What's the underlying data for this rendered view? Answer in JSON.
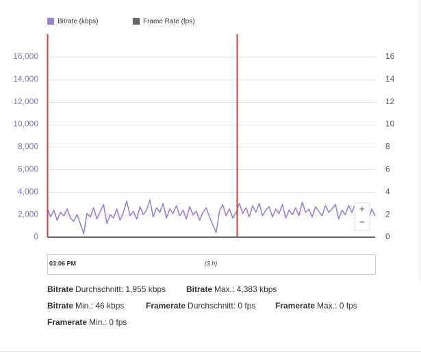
{
  "chart_data": {
    "type": "line",
    "legend_position": "top-left",
    "grid": true,
    "ylim": [
      0,
      18000
    ],
    "yticks": [
      0,
      {
        "value": 2000,
        "label": "2,000"
      },
      {
        "value": 4000,
        "label": "4,000"
      },
      {
        "value": 6000,
        "label": "6,000"
      },
      {
        "value": 8000,
        "label": "8,000"
      },
      {
        "value": 10000,
        "label": "10,000"
      },
      {
        "value": 12000,
        "label": "12,000"
      },
      {
        "value": 14000,
        "label": "14,000"
      },
      {
        "value": 16000,
        "label": "16,000"
      }
    ],
    "y2lim": [
      0,
      18
    ],
    "y2ticks": [
      0,
      2,
      4,
      6,
      8,
      10,
      12,
      14,
      16
    ],
    "series": [
      {
        "name": "Bitrate (kbps)",
        "color": "#9a80d0",
        "values": [
          2600,
          1800,
          2400,
          1500,
          2200,
          1900,
          2500,
          1700,
          1400,
          2000,
          1200,
          300,
          2100,
          1800,
          2600,
          1600,
          2300,
          2900,
          1200,
          2000,
          1700,
          2500,
          1500,
          2200,
          3200,
          1900,
          2300,
          1600,
          2700,
          2000,
          2400,
          3300,
          1800,
          2600,
          2200,
          3000,
          1700,
          2500,
          2100,
          2800,
          1900,
          2400,
          1600,
          2700,
          2000,
          2300,
          1500,
          2200,
          2600,
          1800,
          1100,
          400,
          2300,
          2900,
          1900,
          2500,
          1700,
          2200,
          3000,
          2100,
          2600,
          1800,
          2800,
          2200,
          3000,
          1900,
          2400,
          2700,
          1800,
          2500,
          2100,
          2900,
          1700,
          2400,
          2000,
          2600,
          1900,
          3100,
          2200,
          2500,
          1800,
          2700,
          2300,
          1900,
          2800,
          2200,
          2500,
          2900,
          1600,
          2400,
          2000,
          2800,
          2200,
          3000,
          1900,
          2600,
          2300,
          1600,
          2500,
          1900
        ]
      },
      {
        "name": "Frame Rate (fps)",
        "color": "#666666",
        "axis": "y2",
        "values": [
          0,
          0,
          0,
          0,
          0,
          0,
          0,
          0,
          0,
          0,
          0,
          0,
          0,
          0,
          0,
          0,
          0,
          0,
          0,
          0,
          0,
          0,
          0,
          0,
          0,
          0,
          0,
          0,
          0,
          0,
          0,
          0,
          0,
          0,
          0,
          0,
          0,
          0,
          0,
          0,
          0,
          0,
          0,
          0,
          0,
          0,
          0,
          0,
          0,
          0,
          0,
          0,
          0,
          0,
          0,
          0,
          0,
          0,
          0,
          0,
          0,
          0,
          0,
          0,
          0,
          0,
          0,
          0,
          0,
          0,
          0,
          0,
          0,
          0,
          0,
          0,
          0,
          0,
          0,
          0,
          0,
          0,
          0,
          0,
          0,
          0,
          0,
          0,
          0,
          0,
          0,
          0,
          0,
          0,
          0,
          0,
          0,
          0,
          0,
          0
        ]
      }
    ]
  },
  "navigator": {
    "start": "03:06 PM",
    "span": "(3 h)"
  },
  "zoom": {
    "in": "+",
    "out": "−"
  },
  "stats": [
    {
      "label": "Bitrate",
      "text": "Durchschnitt: 1,955 kbps"
    },
    {
      "label": "Bitrate",
      "text": "Max.: 4,383 kbps"
    },
    {
      "label": "Bitrate",
      "text": "Min.: 46 kbps"
    },
    {
      "label": "Framerate",
      "text": "Durchschnitt: 0 fps"
    },
    {
      "label": "Framerate",
      "text": "Max.: 0 fps"
    },
    {
      "label": "Framerate",
      "text": "Min.: 0 fps"
    }
  ]
}
